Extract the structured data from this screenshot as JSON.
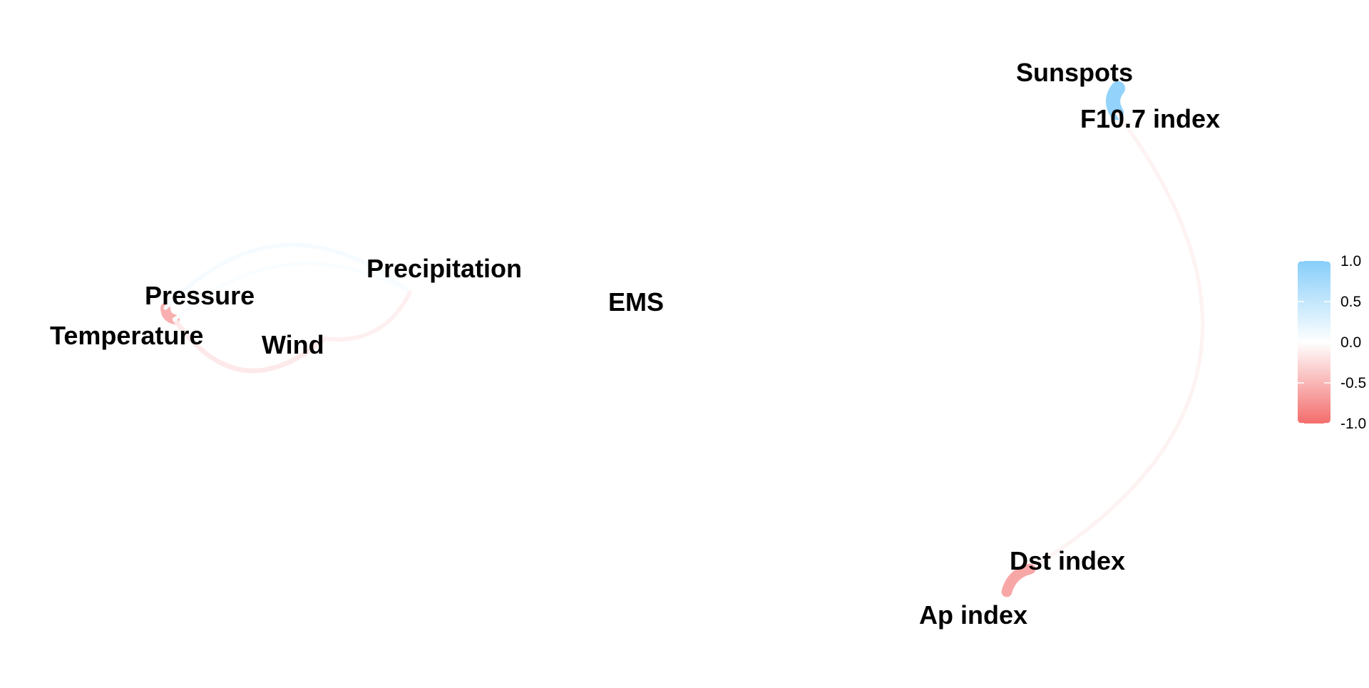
{
  "network": {
    "nodes": [
      {
        "id": "sunspots",
        "label": "Sunspots"
      },
      {
        "id": "f107",
        "label": "F10.7 index"
      },
      {
        "id": "precipitation",
        "label": "Precipitation"
      },
      {
        "id": "pressure",
        "label": "Pressure"
      },
      {
        "id": "temperature",
        "label": "Temperature"
      },
      {
        "id": "wind",
        "label": "Wind"
      },
      {
        "id": "ems",
        "label": "EMS"
      },
      {
        "id": "dst",
        "label": "Dst index"
      },
      {
        "id": "ap",
        "label": "Ap index"
      }
    ],
    "edges": [
      {
        "from": "sunspots",
        "to": "f107",
        "correlation": 0.9
      },
      {
        "from": "f107",
        "to": "dst",
        "correlation": -0.08
      },
      {
        "from": "dst",
        "to": "ap",
        "correlation": -0.6
      },
      {
        "from": "pressure",
        "to": "temperature",
        "correlation": -0.55
      },
      {
        "from": "temperature",
        "to": "wind",
        "correlation": -0.15
      },
      {
        "from": "pressure",
        "to": "precipitation",
        "correlation": 0.08
      },
      {
        "from": "temperature",
        "to": "precipitation",
        "correlation": 0.05
      },
      {
        "from": "wind",
        "to": "precipitation",
        "correlation": -0.1
      }
    ]
  },
  "legend": {
    "placement": "right",
    "colors": {
      "positive": "#87cefa",
      "zero": "#ffffff",
      "negative": "#f46d6d"
    },
    "ticks": [
      {
        "value": 1.0,
        "label": "1.0"
      },
      {
        "value": 0.5,
        "label": "0.5"
      },
      {
        "value": 0.0,
        "label": "0.0"
      },
      {
        "value": -0.5,
        "label": "-0.5"
      },
      {
        "value": -1.0,
        "label": "-1.0"
      }
    ]
  }
}
